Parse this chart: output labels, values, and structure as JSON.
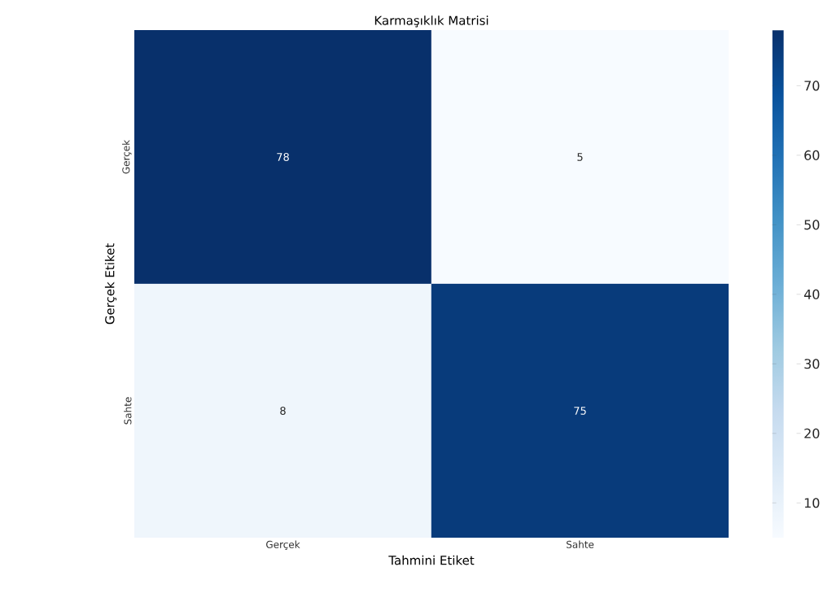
{
  "chart_data": {
    "type": "heatmap",
    "title": "Karmaşıklık Matrisi",
    "xlabel": "Tahmini Etiket",
    "ylabel": "Gerçek Etiket",
    "categories": [
      "Gerçek",
      "Sahte"
    ],
    "y_categories": [
      "Gerçek",
      "Sahte"
    ],
    "cells": [
      [
        78,
        5
      ],
      [
        8,
        75
      ]
    ],
    "clim": [
      5,
      78
    ],
    "cticks": [
      10,
      20,
      30,
      40,
      50,
      60,
      70
    ],
    "data_labels": true
  }
}
